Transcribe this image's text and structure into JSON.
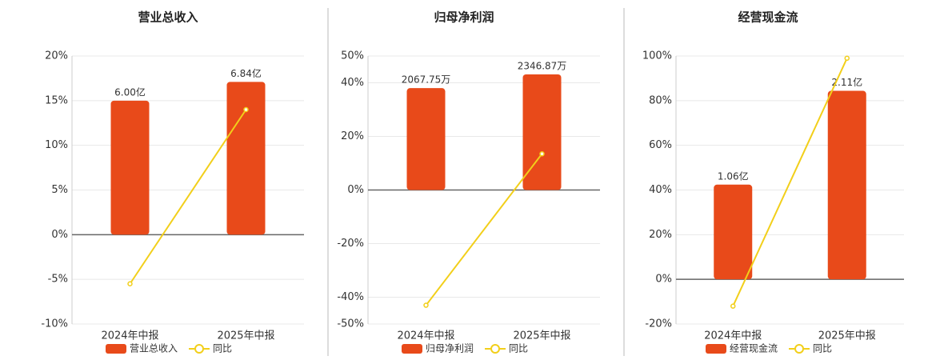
{
  "chart_data": [
    {
      "type": "combo",
      "title": "营业总收入",
      "categories": [
        "2024年中报",
        "2025年中报"
      ],
      "series": [
        {
          "name": "营业总收入",
          "type": "bar",
          "color": "#e84a1a",
          "axis": "y2",
          "values": [
            6.0,
            6.84
          ],
          "value_labels": [
            "6.00亿",
            "6.84亿"
          ]
        },
        {
          "name": "同比",
          "type": "line",
          "color": "#f2cf1a",
          "values": [
            -5.5,
            14.0
          ]
        }
      ],
      "ylim": [
        -10,
        20
      ],
      "y2lim": [
        -4,
        8
      ],
      "yticks": [
        {
          "value": 20,
          "label": "20%"
        },
        {
          "value": 15,
          "label": "15%"
        },
        {
          "value": 10,
          "label": "10%"
        },
        {
          "value": 5,
          "label": "5%"
        },
        {
          "value": 0,
          "label": "0%"
        },
        {
          "value": -5,
          "label": "-5%"
        },
        {
          "value": -10,
          "label": "-10%"
        }
      ],
      "grid": true
    },
    {
      "type": "combo",
      "title": "归母净利润",
      "categories": [
        "2024年中报",
        "2025年中报"
      ],
      "series": [
        {
          "name": "归母净利润",
          "type": "bar",
          "color": "#e84a1a",
          "axis": "y2",
          "values": [
            2067.75,
            2346.87
          ],
          "value_labels": [
            "2067.75万",
            "2346.87万"
          ]
        },
        {
          "name": "同比",
          "type": "line",
          "color": "#f2cf1a",
          "values": [
            -43.0,
            13.5
          ]
        }
      ],
      "ylim": [
        -50,
        50
      ],
      "y2lim": [
        -2720,
        2720
      ],
      "yticks": [
        {
          "value": 50,
          "label": "50%"
        },
        {
          "value": 40,
          "label": "40%"
        },
        {
          "value": 20,
          "label": "20%"
        },
        {
          "value": 0,
          "label": "0%"
        },
        {
          "value": -20,
          "label": "-20%"
        },
        {
          "value": -40,
          "label": "-40%"
        },
        {
          "value": -50,
          "label": "-50%"
        }
      ],
      "grid": true
    },
    {
      "type": "combo",
      "title": "经营现金流",
      "categories": [
        "2024年中报",
        "2025年中报"
      ],
      "series": [
        {
          "name": "经营现金流",
          "type": "bar",
          "color": "#e84a1a",
          "axis": "y2",
          "values": [
            1.06,
            2.11
          ],
          "value_labels": [
            "1.06亿",
            "2.11亿"
          ]
        },
        {
          "name": "同比",
          "type": "line",
          "color": "#f2cf1a",
          "values": [
            -12.0,
            99.0
          ]
        }
      ],
      "ylim": [
        -20,
        100
      ],
      "y2lim": [
        -0.5,
        2.5
      ],
      "yticks": [
        {
          "value": 100,
          "label": "100%"
        },
        {
          "value": 80,
          "label": "80%"
        },
        {
          "value": 60,
          "label": "60%"
        },
        {
          "value": 40,
          "label": "40%"
        },
        {
          "value": 20,
          "label": "20%"
        },
        {
          "value": 0,
          "label": "0%"
        },
        {
          "value": -20,
          "label": "-20%"
        }
      ],
      "grid": true
    }
  ]
}
